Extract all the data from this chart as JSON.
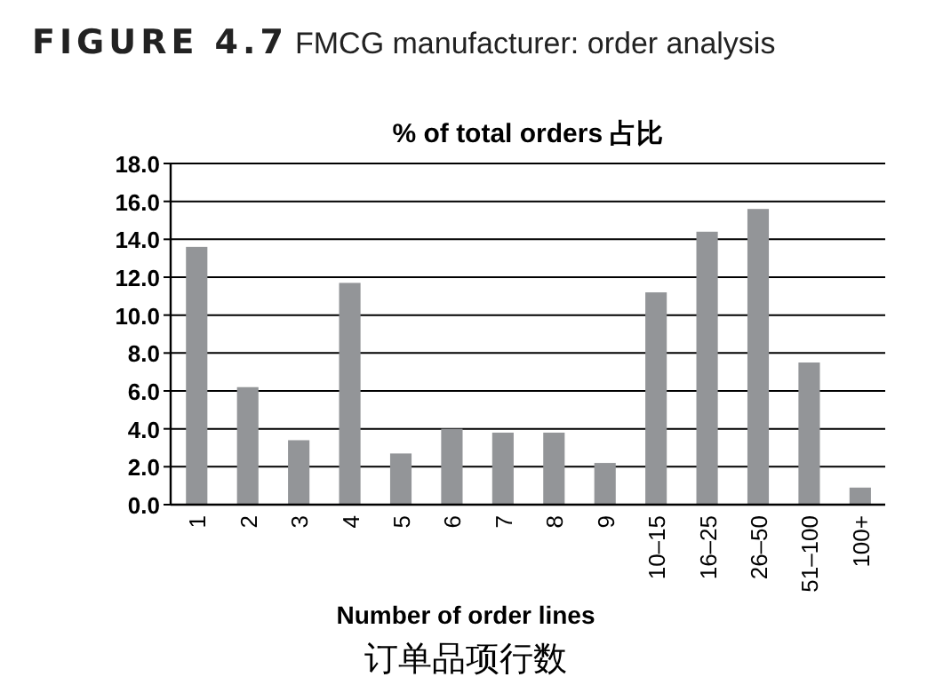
{
  "chart_data": {
    "type": "bar",
    "title": "FIGURE 4.7",
    "subtitle": "FMCG manufacturer: order analysis",
    "ylabel": "% of total orders 占比",
    "xlabel": "Number of order lines\n订单品项行数",
    "categories": [
      "1",
      "2",
      "3",
      "4",
      "5",
      "6",
      "7",
      "8",
      "9",
      "10–15",
      "16–25",
      "26–50",
      "51–100",
      "100+"
    ],
    "values": [
      13.6,
      6.2,
      3.4,
      11.7,
      2.7,
      4.0,
      3.8,
      3.8,
      2.2,
      11.2,
      14.4,
      15.6,
      7.5,
      0.9
    ],
    "color": "#939598",
    "ylim": [
      0,
      18
    ],
    "yticks": [
      {
        "value": 0,
        "label": "0.0"
      },
      {
        "value": 2,
        "label": "2.0"
      },
      {
        "value": 4,
        "label": "4.0"
      },
      {
        "value": 6,
        "label": "6.0"
      },
      {
        "value": 8,
        "label": "8.0"
      },
      {
        "value": 10,
        "label": "10.0"
      },
      {
        "value": 12,
        "label": "12.0"
      },
      {
        "value": 14,
        "label": "14.0"
      },
      {
        "value": 16,
        "label": "16.0"
      },
      {
        "value": 18,
        "label": "18.0"
      }
    ],
    "grid": "y"
  }
}
